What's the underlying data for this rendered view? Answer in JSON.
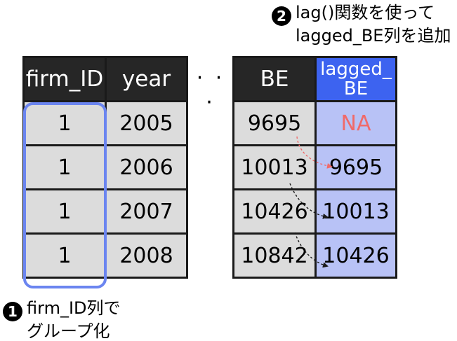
{
  "left_table": {
    "headers": [
      "firm_ID",
      "year"
    ],
    "rows": [
      [
        "1",
        "2005"
      ],
      [
        "1",
        "2006"
      ],
      [
        "1",
        "2007"
      ],
      [
        "1",
        "2008"
      ]
    ]
  },
  "ellipsis": "· · ·",
  "right_table": {
    "headers": [
      "BE",
      "lagged_\nBE"
    ],
    "rows": [
      [
        "9695",
        "NA"
      ],
      [
        "10013",
        "9695"
      ],
      [
        "10426",
        "10013"
      ],
      [
        "10842",
        "10426"
      ]
    ]
  },
  "annotations": {
    "note1": {
      "badge": "1",
      "line1": "firm_ID列で",
      "line2": "グループ化"
    },
    "note2": {
      "badge": "2",
      "line1": "lag()関数を使って",
      "line2": "lagged_BE列を追加"
    }
  },
  "colors": {
    "header_bg": "#262626",
    "lagged_header_bg": "#3d63f0",
    "cell_bg": "#dcdcdc",
    "lagged_cell_bg": "#b8c2f6",
    "group_outline": "#6b85f0",
    "na_text": "#f06a6a",
    "first_arrow": "#f06a6a"
  }
}
